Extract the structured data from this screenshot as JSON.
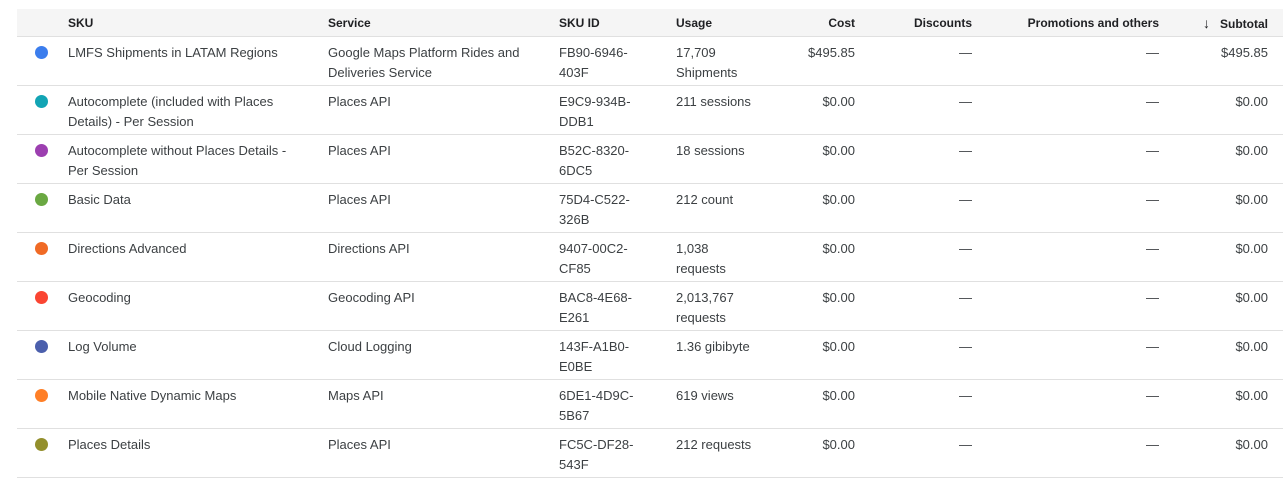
{
  "headers": {
    "sku": "SKU",
    "service": "Service",
    "sku_id": "SKU ID",
    "usage": "Usage",
    "cost": "Cost",
    "discounts": "Discounts",
    "promotions": "Promotions and others",
    "subtotal": "Subtotal"
  },
  "sort": {
    "column": "subtotal",
    "direction": "descending",
    "icon": "arrow-down-icon"
  },
  "rows": [
    {
      "color": "#3b7ded",
      "sku": "LMFS Shipments in LATAM Regions",
      "service": "Google Maps Platform Rides and Deliveries Service",
      "sku_id": "FB90-6946-403F",
      "usage": "17,709 Shipments",
      "cost": "$495.85",
      "discounts": "—",
      "promotions": "—",
      "subtotal": "$495.85"
    },
    {
      "color": "#12a4b4",
      "sku": "Autocomplete (included with Places Details) - Per Session",
      "service": "Places API",
      "sku_id": "E9C9-934B-DDB1",
      "usage": "211 sessions",
      "cost": "$0.00",
      "discounts": "—",
      "promotions": "—",
      "subtotal": "$0.00"
    },
    {
      "color": "#9c3fb0",
      "sku": "Autocomplete without Places Details - Per Session",
      "service": "Places API",
      "sku_id": "B52C-8320-6DC5",
      "usage": "18 sessions",
      "cost": "$0.00",
      "discounts": "—",
      "promotions": "—",
      "subtotal": "$0.00"
    },
    {
      "color": "#6aa842",
      "sku": "Basic Data",
      "service": "Places API",
      "sku_id": "75D4-C522-326B",
      "usage": "212 count",
      "cost": "$0.00",
      "discounts": "—",
      "promotions": "—",
      "subtotal": "$0.00"
    },
    {
      "color": "#f06a25",
      "sku": "Directions Advanced",
      "service": "Directions API",
      "sku_id": "9407-00C2-CF85",
      "usage": "1,038 requests",
      "cost": "$0.00",
      "discounts": "—",
      "promotions": "—",
      "subtotal": "$0.00"
    },
    {
      "color": "#fa4532",
      "sku": "Geocoding",
      "service": "Geocoding API",
      "sku_id": "BAC8-4E68-E261",
      "usage": "2,013,767 requests",
      "cost": "$0.00",
      "discounts": "—",
      "promotions": "—",
      "subtotal": "$0.00"
    },
    {
      "color": "#4b5fac",
      "sku": "Log Volume",
      "service": "Cloud Logging",
      "sku_id": "143F-A1B0-E0BE",
      "usage": "1.36 gibibyte",
      "cost": "$0.00",
      "discounts": "—",
      "promotions": "—",
      "subtotal": "$0.00"
    },
    {
      "color": "#ff7f27",
      "sku": "Mobile Native Dynamic Maps",
      "service": "Maps API",
      "sku_id": "6DE1-4D9C-5B67",
      "usage": "619 views",
      "cost": "$0.00",
      "discounts": "—",
      "promotions": "—",
      "subtotal": "$0.00"
    },
    {
      "color": "#938f2c",
      "sku": "Places Details",
      "service": "Places API",
      "sku_id": "FC5C-DF28-543F",
      "usage": "212 requests",
      "cost": "$0.00",
      "discounts": "—",
      "promotions": "—",
      "subtotal": "$0.00"
    }
  ]
}
